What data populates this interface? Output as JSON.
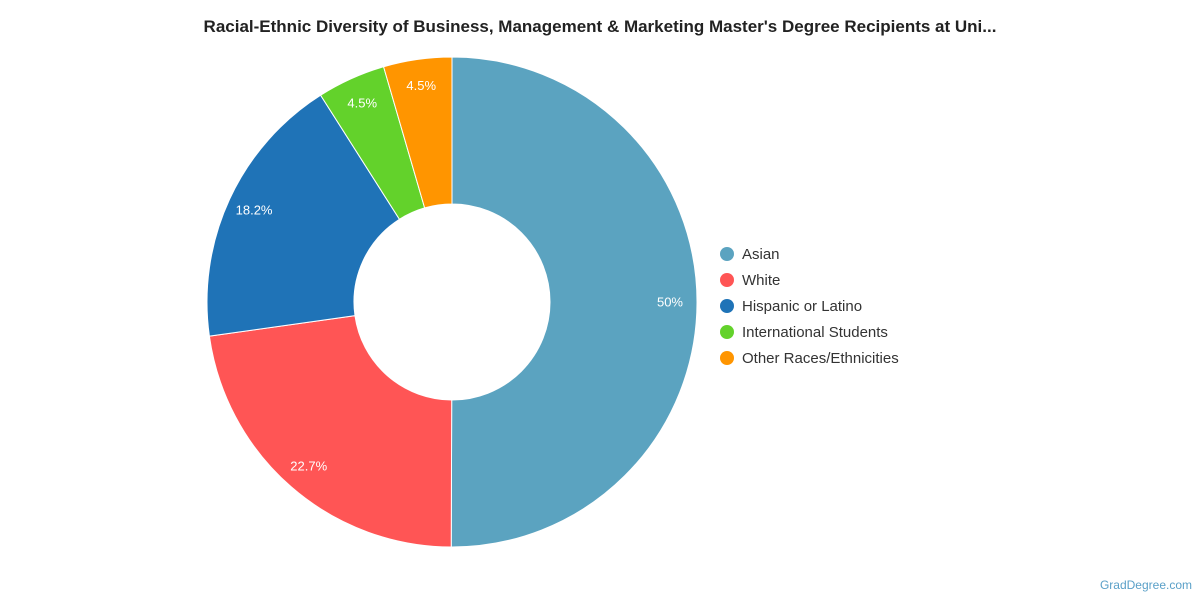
{
  "chart_data": {
    "type": "pie",
    "title": "Racial-Ethnic Diversity of Business, Management & Marketing Master's Degree Recipients at Uni...",
    "categories": [
      "Asian",
      "White",
      "Hispanic or Latino",
      "International Students",
      "Other Races/Ethnicities"
    ],
    "values": [
      50,
      22.7,
      18.2,
      4.5,
      4.5
    ],
    "labels": [
      "50%",
      "22.7%",
      "18.2%",
      "4.5%",
      "4.5%"
    ],
    "colors": [
      "#5ba3c0",
      "#ff5555",
      "#1f73b7",
      "#63d22b",
      "#ff9500"
    ],
    "donut": true,
    "legend_position": "right"
  },
  "credit": "GradDegree.com"
}
